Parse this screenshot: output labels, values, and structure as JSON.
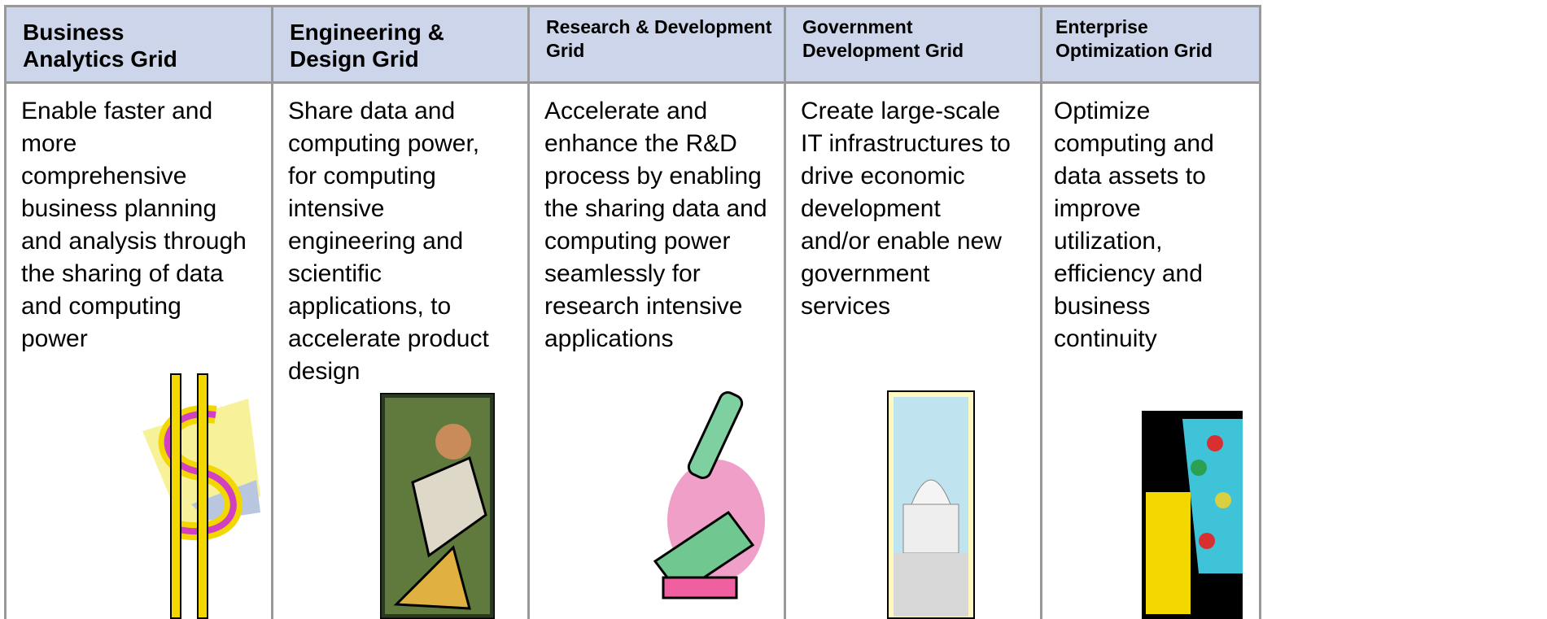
{
  "columns": [
    {
      "title": "Business Analytics Grid",
      "text": "Enable faster and more comprehensive business planning and analysis through the sharing of data and computing power"
    },
    {
      "title": "Engineering & Design Grid",
      "text": "Share data and computing power, for computing intensive engineering and scientific applications, to accelerate product design"
    },
    {
      "title": "Research & Development  Grid",
      "text": "Accelerate and enhance the R&D process by enabling the sharing data and computing power seamlessly for research intensive applications"
    },
    {
      "title": "Government Development Grid",
      "text": "Create large-scale IT infrastructures to drive economic development and/or enable new government services"
    },
    {
      "title": "Enterprise Optimization Grid",
      "text": "Optimize computing and data assets to improve utilization, efficiency and business continuity"
    }
  ]
}
